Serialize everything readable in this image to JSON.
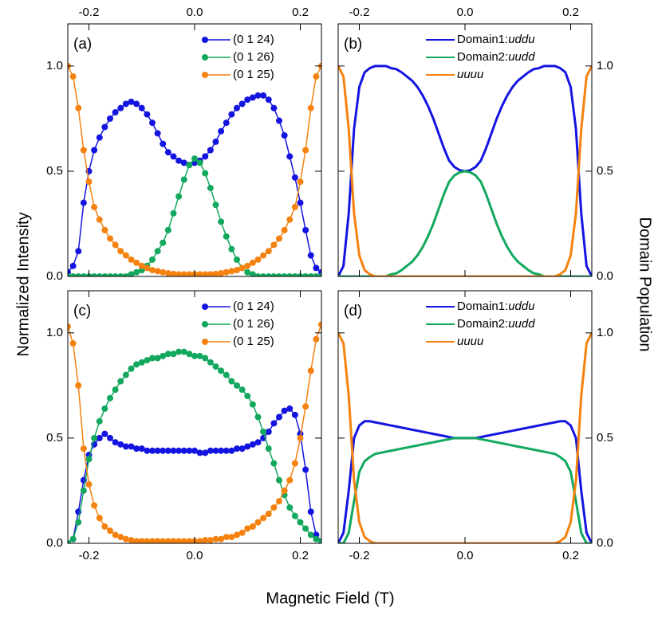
{
  "figure": {
    "ylabel_left": "Normalized Intensity",
    "ylabel_right": "Domain Population",
    "xlabel": "Magnetic Field (T)"
  },
  "chart_data": [
    {
      "type": "line",
      "label": "(a)",
      "markers": true,
      "legend_loc": "upper right",
      "xaxis_position": "top",
      "yaxis_position": "left",
      "x": [
        -0.24,
        -0.23,
        -0.22,
        -0.21,
        -0.2,
        -0.19,
        -0.18,
        -0.17,
        -0.16,
        -0.15,
        -0.14,
        -0.13,
        -0.12,
        -0.11,
        -0.1,
        -0.09,
        -0.08,
        -0.07,
        -0.06,
        -0.05,
        -0.04,
        -0.03,
        -0.02,
        -0.01,
        0,
        0.01,
        0.02,
        0.03,
        0.04,
        0.05,
        0.06,
        0.07,
        0.08,
        0.09,
        0.1,
        0.11,
        0.12,
        0.13,
        0.14,
        0.15,
        0.16,
        0.17,
        0.18,
        0.19,
        0.2,
        0.21,
        0.22,
        0.23,
        0.24
      ],
      "series": [
        {
          "name": "(0 1 24)",
          "color": "#1414e0",
          "values": [
            0.02,
            0.05,
            0.12,
            0.35,
            0.5,
            0.6,
            0.66,
            0.71,
            0.75,
            0.78,
            0.8,
            0.82,
            0.83,
            0.82,
            0.8,
            0.77,
            0.73,
            0.68,
            0.63,
            0.59,
            0.57,
            0.55,
            0.54,
            0.53,
            0.54,
            0.55,
            0.57,
            0.6,
            0.64,
            0.69,
            0.73,
            0.77,
            0.8,
            0.82,
            0.84,
            0.85,
            0.86,
            0.86,
            0.84,
            0.8,
            0.74,
            0.67,
            0.57,
            0.47,
            0.35,
            0.22,
            0.1,
            0.04,
            0.02
          ]
        },
        {
          "name": "(0 1 26)",
          "color": "#12a85e",
          "values": [
            0,
            0,
            0,
            0,
            0,
            0,
            0,
            0,
            0,
            0,
            0,
            0,
            0.01,
            0.02,
            0.03,
            0.05,
            0.08,
            0.12,
            0.16,
            0.22,
            0.3,
            0.38,
            0.46,
            0.53,
            0.56,
            0.54,
            0.49,
            0.42,
            0.34,
            0.26,
            0.19,
            0.13,
            0.08,
            0.04,
            0.02,
            0.01,
            0,
            0,
            0,
            0,
            0,
            0,
            0,
            0,
            0,
            0,
            0,
            0,
            0
          ]
        },
        {
          "name": "(0 1 25)",
          "color": "#f5820f",
          "values": [
            1.0,
            0.95,
            0.8,
            0.6,
            0.45,
            0.33,
            0.27,
            0.22,
            0.18,
            0.15,
            0.12,
            0.1,
            0.08,
            0.065,
            0.05,
            0.04,
            0.03,
            0.025,
            0.02,
            0.015,
            0.012,
            0.01,
            0.01,
            0.01,
            0.01,
            0.01,
            0.01,
            0.01,
            0.012,
            0.015,
            0.02,
            0.025,
            0.03,
            0.04,
            0.05,
            0.065,
            0.08,
            0.1,
            0.12,
            0.15,
            0.18,
            0.22,
            0.27,
            0.33,
            0.45,
            0.6,
            0.8,
            0.95,
            1.0
          ]
        }
      ],
      "xlim": [
        -0.24,
        0.24
      ],
      "xticks": [
        -0.2,
        {
          "value": 0,
          "label": "0.0"
        },
        0.2
      ],
      "ylim": [
        0,
        1.2
      ],
      "yticks": [
        {
          "value": 0,
          "label": "0.0"
        },
        0.5,
        {
          "value": 1,
          "label": "1.0"
        }
      ]
    },
    {
      "type": "line",
      "label": "(b)",
      "markers": false,
      "legend_loc": "upper center",
      "xaxis_position": "top",
      "yaxis_position": "right",
      "x": [
        -0.24,
        -0.23,
        -0.22,
        -0.21,
        -0.2,
        -0.19,
        -0.18,
        -0.17,
        -0.16,
        -0.15,
        -0.14,
        -0.13,
        -0.12,
        -0.11,
        -0.1,
        -0.09,
        -0.08,
        -0.07,
        -0.06,
        -0.05,
        -0.04,
        -0.03,
        -0.02,
        -0.01,
        0,
        0.01,
        0.02,
        0.03,
        0.04,
        0.05,
        0.06,
        0.07,
        0.08,
        0.09,
        0.1,
        0.11,
        0.12,
        0.13,
        0.14,
        0.15,
        0.16,
        0.17,
        0.18,
        0.19,
        0.2,
        0.21,
        0.22,
        0.23,
        0.24
      ],
      "series": [
        {
          "name": "Domain1:uddu",
          "color": "#1414e0",
          "values": [
            0,
            0.05,
            0.3,
            0.7,
            0.9,
            0.97,
            0.99,
            1.0,
            1.0,
            1.0,
            0.99,
            0.985,
            0.97,
            0.95,
            0.93,
            0.9,
            0.86,
            0.81,
            0.75,
            0.68,
            0.61,
            0.55,
            0.52,
            0.505,
            0.5,
            0.505,
            0.52,
            0.55,
            0.61,
            0.68,
            0.75,
            0.81,
            0.86,
            0.9,
            0.93,
            0.95,
            0.97,
            0.985,
            0.99,
            1.0,
            1.0,
            1.0,
            0.99,
            0.97,
            0.9,
            0.7,
            0.3,
            0.05,
            0
          ]
        },
        {
          "name": "Domain2:uudd",
          "color": "#12a85e",
          "values": [
            0,
            0,
            0,
            0,
            0,
            0,
            0,
            0,
            0,
            0,
            0.01,
            0.015,
            0.03,
            0.05,
            0.07,
            0.1,
            0.14,
            0.19,
            0.25,
            0.32,
            0.39,
            0.45,
            0.48,
            0.495,
            0.5,
            0.495,
            0.48,
            0.45,
            0.39,
            0.32,
            0.25,
            0.19,
            0.14,
            0.1,
            0.07,
            0.05,
            0.03,
            0.015,
            0.01,
            0,
            0,
            0,
            0,
            0,
            0,
            0,
            0,
            0,
            0
          ]
        },
        {
          "name": "uuuu",
          "color": "#f5820f",
          "values": [
            1.0,
            0.95,
            0.7,
            0.3,
            0.1,
            0.03,
            0.01,
            0,
            0,
            0,
            0,
            0,
            0,
            0,
            0,
            0,
            0,
            0,
            0,
            0,
            0,
            0,
            0,
            0,
            0,
            0,
            0,
            0,
            0,
            0,
            0,
            0,
            0,
            0,
            0,
            0,
            0,
            0,
            0,
            0,
            0,
            0,
            0.01,
            0.03,
            0.1,
            0.3,
            0.7,
            0.95,
            1.0
          ]
        }
      ],
      "xlim": [
        -0.24,
        0.24
      ],
      "xticks": [
        -0.2,
        {
          "value": 0,
          "label": "0.0"
        },
        0.2
      ],
      "ylim": [
        0,
        1.2
      ],
      "yticks": [
        {
          "value": 0,
          "label": "0.0"
        },
        0.5,
        {
          "value": 1,
          "label": "1.0"
        }
      ]
    },
    {
      "type": "line",
      "label": "(c)",
      "markers": true,
      "legend_loc": "upper right",
      "xaxis_position": "bottom",
      "yaxis_position": "left",
      "x": [
        -0.24,
        -0.23,
        -0.22,
        -0.21,
        -0.2,
        -0.19,
        -0.18,
        -0.17,
        -0.16,
        -0.15,
        -0.14,
        -0.13,
        -0.12,
        -0.11,
        -0.1,
        -0.09,
        -0.08,
        -0.07,
        -0.06,
        -0.05,
        -0.04,
        -0.03,
        -0.02,
        -0.01,
        0,
        0.01,
        0.02,
        0.03,
        0.04,
        0.05,
        0.06,
        0.07,
        0.08,
        0.09,
        0.1,
        0.11,
        0.12,
        0.13,
        0.14,
        0.15,
        0.16,
        0.17,
        0.18,
        0.19,
        0.2,
        0.21,
        0.22,
        0.23,
        0.24
      ],
      "series": [
        {
          "name": "(0 1 24)",
          "color": "#1414e0",
          "values": [
            0,
            0.02,
            0.15,
            0.3,
            0.42,
            0.47,
            0.5,
            0.52,
            0.5,
            0.48,
            0.47,
            0.46,
            0.46,
            0.45,
            0.45,
            0.44,
            0.44,
            0.44,
            0.44,
            0.44,
            0.44,
            0.44,
            0.44,
            0.44,
            0.44,
            0.43,
            0.43,
            0.44,
            0.44,
            0.44,
            0.44,
            0.44,
            0.45,
            0.45,
            0.46,
            0.47,
            0.48,
            0.5,
            0.53,
            0.57,
            0.6,
            0.63,
            0.64,
            0.61,
            0.52,
            0.35,
            0.15,
            0.04,
            0.01
          ]
        },
        {
          "name": "(0 1 26)",
          "color": "#12a85e",
          "values": [
            0,
            0.02,
            0.1,
            0.25,
            0.4,
            0.5,
            0.58,
            0.64,
            0.69,
            0.73,
            0.77,
            0.8,
            0.83,
            0.85,
            0.86,
            0.87,
            0.88,
            0.88,
            0.89,
            0.9,
            0.9,
            0.91,
            0.91,
            0.9,
            0.89,
            0.89,
            0.88,
            0.86,
            0.84,
            0.82,
            0.8,
            0.77,
            0.75,
            0.73,
            0.7,
            0.66,
            0.6,
            0.53,
            0.45,
            0.38,
            0.3,
            0.23,
            0.17,
            0.13,
            0.1,
            0.07,
            0.04,
            0.02,
            0.01
          ]
        },
        {
          "name": "(0 1 25)",
          "color": "#f5820f",
          "values": [
            1.03,
            0.95,
            0.75,
            0.45,
            0.28,
            0.18,
            0.12,
            0.08,
            0.06,
            0.04,
            0.03,
            0.02,
            0.015,
            0.01,
            0.01,
            0.01,
            0.01,
            0.01,
            0.01,
            0.01,
            0.01,
            0.01,
            0.01,
            0.01,
            0.01,
            0.01,
            0.015,
            0.015,
            0.02,
            0.02,
            0.03,
            0.03,
            0.04,
            0.05,
            0.07,
            0.08,
            0.1,
            0.12,
            0.14,
            0.17,
            0.2,
            0.25,
            0.3,
            0.38,
            0.5,
            0.65,
            0.82,
            0.97,
            1.04
          ]
        }
      ],
      "xlim": [
        -0.24,
        0.24
      ],
      "xticks": [
        -0.2,
        {
          "value": 0,
          "label": "0.0"
        },
        0.2
      ],
      "ylim": [
        0,
        1.2
      ],
      "yticks": [
        {
          "value": 0,
          "label": "0.0"
        },
        0.5,
        {
          "value": 1,
          "label": "1.0"
        }
      ]
    },
    {
      "type": "line",
      "label": "(d)",
      "markers": false,
      "legend_loc": "upper center",
      "xaxis_position": "bottom",
      "yaxis_position": "right",
      "x": [
        -0.24,
        -0.23,
        -0.22,
        -0.21,
        -0.2,
        -0.19,
        -0.18,
        -0.17,
        -0.16,
        -0.15,
        -0.14,
        -0.13,
        -0.12,
        -0.11,
        -0.1,
        -0.09,
        -0.08,
        -0.07,
        -0.06,
        -0.05,
        -0.04,
        -0.03,
        -0.02,
        -0.01,
        0,
        0.01,
        0.02,
        0.03,
        0.04,
        0.05,
        0.06,
        0.07,
        0.08,
        0.09,
        0.1,
        0.11,
        0.12,
        0.13,
        0.14,
        0.15,
        0.16,
        0.17,
        0.18,
        0.19,
        0.2,
        0.21,
        0.22,
        0.23,
        0.24
      ],
      "series": [
        {
          "name": "Domain1:uddu",
          "color": "#1414e0",
          "values": [
            0,
            0.05,
            0.25,
            0.5,
            0.56,
            0.58,
            0.58,
            0.575,
            0.57,
            0.565,
            0.56,
            0.555,
            0.55,
            0.545,
            0.54,
            0.535,
            0.53,
            0.525,
            0.52,
            0.515,
            0.51,
            0.505,
            0.5,
            0.5,
            0.5,
            0.5,
            0.5,
            0.505,
            0.51,
            0.515,
            0.52,
            0.525,
            0.53,
            0.535,
            0.54,
            0.545,
            0.55,
            0.555,
            0.56,
            0.565,
            0.57,
            0.575,
            0.58,
            0.58,
            0.56,
            0.5,
            0.25,
            0.05,
            0
          ]
        },
        {
          "name": "Domain2:uudd",
          "color": "#12a85e",
          "values": [
            0,
            0,
            0.05,
            0.2,
            0.34,
            0.39,
            0.41,
            0.425,
            0.43,
            0.435,
            0.44,
            0.445,
            0.45,
            0.455,
            0.46,
            0.465,
            0.47,
            0.475,
            0.48,
            0.485,
            0.49,
            0.495,
            0.5,
            0.5,
            0.5,
            0.5,
            0.5,
            0.495,
            0.49,
            0.485,
            0.48,
            0.475,
            0.47,
            0.465,
            0.46,
            0.455,
            0.45,
            0.445,
            0.44,
            0.435,
            0.43,
            0.425,
            0.41,
            0.39,
            0.34,
            0.2,
            0.05,
            0,
            0
          ]
        },
        {
          "name": "uuuu",
          "color": "#f5820f",
          "values": [
            1.0,
            0.95,
            0.7,
            0.3,
            0.1,
            0.03,
            0.01,
            0,
            0,
            0,
            0,
            0,
            0,
            0,
            0,
            0,
            0,
            0,
            0,
            0,
            0,
            0,
            0,
            0,
            0,
            0,
            0,
            0,
            0,
            0,
            0,
            0,
            0,
            0,
            0,
            0,
            0,
            0,
            0,
            0,
            0,
            0,
            0.01,
            0.03,
            0.1,
            0.3,
            0.7,
            0.95,
            1.0
          ]
        }
      ],
      "xlim": [
        -0.24,
        0.24
      ],
      "xticks": [
        -0.2,
        {
          "value": 0,
          "label": "0.0"
        },
        0.2
      ],
      "ylim": [
        0,
        1.2
      ],
      "yticks": [
        {
          "value": 0,
          "label": "0.0"
        },
        0.5,
        {
          "value": 1,
          "label": "1.0"
        }
      ]
    }
  ]
}
